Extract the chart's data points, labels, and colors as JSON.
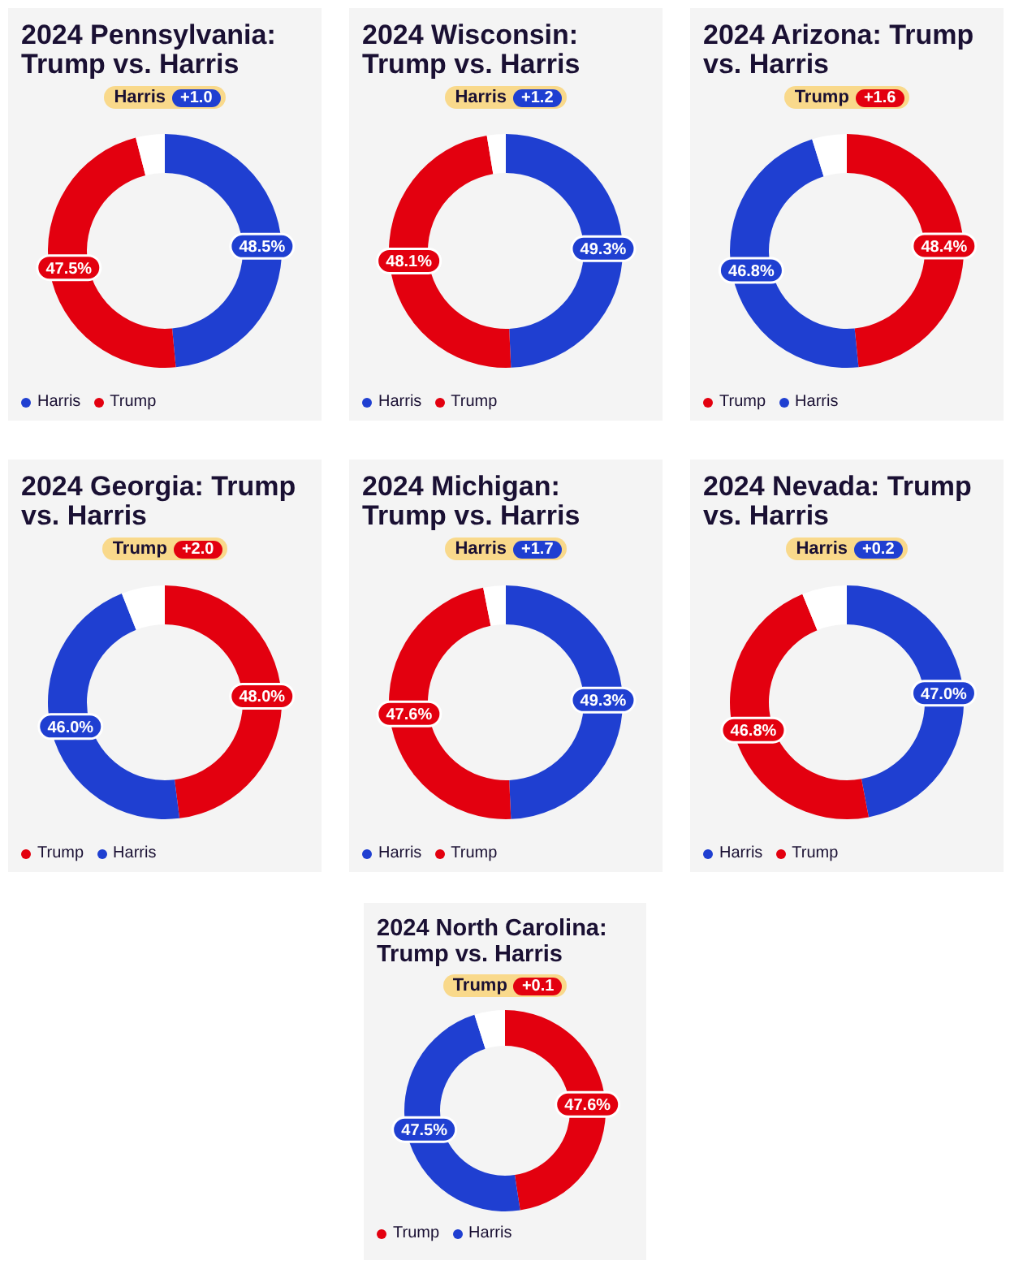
{
  "chart_data": [
    {
      "type": "donut",
      "title": "2024 Pennsylvania: Trump vs. Harris",
      "annotations": [
        "Harris",
        "+1.0"
      ],
      "categories": [
        "Harris",
        "Trump",
        null
      ],
      "values": [
        48.5,
        47.5,
        4.0
      ],
      "colors": [
        "#1f3fd1",
        "#e3000f",
        "#ffffff"
      ],
      "value_labels": [
        "48.5%",
        "47.5%",
        null
      ],
      "legend": "bottom"
    },
    {
      "type": "donut",
      "title": "2024 Wisconsin: Trump vs. Harris",
      "annotations": [
        "Harris",
        "+1.2"
      ],
      "categories": [
        "Harris",
        "Trump",
        null
      ],
      "values": [
        49.3,
        48.1,
        2.6
      ],
      "colors": [
        "#1f3fd1",
        "#e3000f",
        "#ffffff"
      ],
      "value_labels": [
        "49.3%",
        "48.1%",
        null
      ],
      "legend": "bottom"
    },
    {
      "type": "donut",
      "title": "2024 Arizona: Trump vs. Harris",
      "annotations": [
        "Trump",
        "+1.6"
      ],
      "categories": [
        "Trump",
        "Harris",
        null
      ],
      "values": [
        48.4,
        46.8,
        4.8
      ],
      "colors": [
        "#e3000f",
        "#1f3fd1",
        "#ffffff"
      ],
      "value_labels": [
        "48.4%",
        "46.8%",
        null
      ],
      "legend": "bottom"
    },
    {
      "type": "donut",
      "title": "2024 Georgia: Trump vs. Harris",
      "annotations": [
        "Trump",
        "+2.0"
      ],
      "categories": [
        "Trump",
        "Harris",
        null
      ],
      "values": [
        48.0,
        46.0,
        6.0
      ],
      "colors": [
        "#e3000f",
        "#1f3fd1",
        "#ffffff"
      ],
      "value_labels": [
        "48.0%",
        "46.0%",
        null
      ],
      "legend": "bottom"
    },
    {
      "type": "donut",
      "title": "2024 Michigan: Trump vs. Harris",
      "annotations": [
        "Harris",
        "+1.7"
      ],
      "categories": [
        "Harris",
        "Trump",
        null
      ],
      "values": [
        49.3,
        47.6,
        3.1
      ],
      "colors": [
        "#1f3fd1",
        "#e3000f",
        "#ffffff"
      ],
      "value_labels": [
        "49.3%",
        "47.6%",
        null
      ],
      "legend": "bottom"
    },
    {
      "type": "donut",
      "title": "2024 Nevada: Trump vs. Harris",
      "annotations": [
        "Harris",
        "+0.2"
      ],
      "categories": [
        "Harris",
        "Trump",
        null
      ],
      "values": [
        47.0,
        46.8,
        6.2
      ],
      "colors": [
        "#1f3fd1",
        "#e3000f",
        "#ffffff"
      ],
      "value_labels": [
        "47.0%",
        "46.8%",
        null
      ],
      "legend": "bottom"
    },
    {
      "type": "donut",
      "title": "2024 North Carolina: Trump vs. Harris",
      "annotations": [
        "Trump",
        "+0.1"
      ],
      "categories": [
        "Trump",
        "Harris",
        null
      ],
      "values": [
        47.6,
        47.5,
        4.9
      ],
      "colors": [
        "#e3000f",
        "#1f3fd1",
        "#ffffff"
      ],
      "value_labels": [
        "47.6%",
        "47.5%",
        null
      ],
      "legend": "bottom"
    }
  ]
}
